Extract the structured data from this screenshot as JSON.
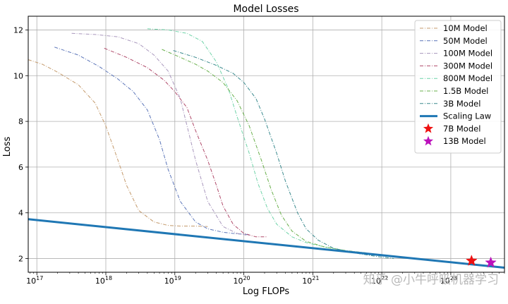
{
  "chart_data": {
    "type": "line",
    "title": "Model Losses",
    "xlabel": "Log FLOPs",
    "ylabel": "Loss",
    "xscale": "log",
    "xlim": [
      7.5e+16,
      6e+23
    ],
    "ylim": [
      1.4,
      12.6
    ],
    "grid": true,
    "legend_position": "top-right",
    "x_ticks": [
      {
        "value": 1e+17,
        "base": "10",
        "exp": "17"
      },
      {
        "value": 1e+18,
        "base": "10",
        "exp": "18"
      },
      {
        "value": 1e+19,
        "base": "10",
        "exp": "19"
      },
      {
        "value": 1e+20,
        "base": "10",
        "exp": "20"
      },
      {
        "value": 1e+21,
        "base": "10",
        "exp": "21"
      },
      {
        "value": 1e+22,
        "base": "10",
        "exp": "22"
      },
      {
        "value": 1e+23,
        "base": "10",
        "exp": "23"
      }
    ],
    "y_ticks": [
      {
        "value": 2,
        "label": "2"
      },
      {
        "value": 4,
        "label": "4"
      },
      {
        "value": 6,
        "label": "6"
      },
      {
        "value": 8,
        "label": "8"
      },
      {
        "value": 10,
        "label": "10"
      },
      {
        "value": 12,
        "label": "12"
      }
    ],
    "series": [
      {
        "name": "10M Model",
        "color": "#c49a6c",
        "style": "dashdot",
        "x": [
          7.5e+16,
          1.2e+17,
          2e+17,
          4e+17,
          7e+17,
          1e+18,
          1.5e+18,
          2e+18,
          3e+18,
          5e+18,
          8e+18,
          1.2e+19,
          2e+19,
          3e+19
        ],
        "y": [
          10.7,
          10.5,
          10.15,
          9.6,
          8.8,
          7.8,
          6.3,
          5.2,
          4.1,
          3.6,
          3.45,
          3.42,
          3.42,
          3.4
        ]
      },
      {
        "name": "50M Model",
        "color": "#5a74b8",
        "style": "dashdot",
        "x": [
          1.8e+17,
          4e+17,
          8e+17,
          1.5e+18,
          2.5e+18,
          4e+18,
          6e+18,
          8e+18,
          1.2e+19,
          2e+19,
          3e+19,
          5e+19,
          8e+19,
          1.2e+20
        ],
        "y": [
          11.25,
          10.9,
          10.4,
          9.85,
          9.3,
          8.5,
          7.2,
          5.9,
          4.5,
          3.6,
          3.3,
          3.15,
          3.08,
          3.05
        ]
      },
      {
        "name": "100M Model",
        "color": "#a896bc",
        "style": "dashdot",
        "x": [
          3.2e+17,
          7e+17,
          1.5e+18,
          3e+18,
          5e+18,
          8e+18,
          1.2e+19,
          2e+19,
          3e+19,
          5e+19,
          8e+19,
          1.2e+20
        ],
        "y": [
          11.85,
          11.8,
          11.7,
          11.4,
          10.9,
          10.2,
          9.0,
          6.3,
          4.5,
          3.4,
          3.1,
          3.0
        ]
      },
      {
        "name": "300M Model",
        "color": "#b04a6a",
        "style": "dashdot",
        "x": [
          9.5e+17,
          2e+18,
          4e+18,
          7e+18,
          1e+19,
          1.5e+19,
          2e+19,
          3e+19,
          4e+19,
          5e+19,
          7e+19,
          1e+20,
          1.5e+20,
          2.2e+20
        ],
        "y": [
          11.2,
          10.8,
          10.35,
          9.8,
          9.3,
          8.6,
          7.6,
          6.3,
          5.2,
          4.3,
          3.5,
          3.1,
          2.95,
          2.95
        ]
      },
      {
        "name": "800M Model",
        "color": "#6fd3a8",
        "style": "dashdot",
        "x": [
          4e+18,
          8e+18,
          1.5e+19,
          2.5e+19,
          4e+19,
          6e+19,
          8e+19,
          1.2e+20,
          1.6e+20,
          2.2e+20,
          3e+20,
          5e+20,
          8e+20,
          1.5e+21,
          3e+21
        ],
        "y": [
          12.05,
          12.0,
          11.85,
          11.5,
          10.6,
          9.4,
          8.2,
          6.6,
          5.3,
          4.2,
          3.5,
          2.95,
          2.7,
          2.5,
          2.35
        ]
      },
      {
        "name": "1.5B Model",
        "color": "#6ab04c",
        "style": "dashdot",
        "x": [
          6.5e+18,
          1.2e+19,
          2e+19,
          3e+19,
          5e+19,
          8e+19,
          1.2e+20,
          1.8e+20,
          2.5e+20,
          3.5e+20,
          5e+20,
          8e+20,
          1.5e+21,
          3e+21,
          6e+21
        ],
        "y": [
          11.15,
          10.8,
          10.5,
          10.2,
          9.7,
          8.9,
          7.8,
          6.3,
          5.0,
          3.9,
          3.2,
          2.75,
          2.5,
          2.35,
          2.25
        ]
      },
      {
        "name": "3B Model",
        "color": "#3a8a8e",
        "style": "dashdot",
        "x": [
          9.5e+18,
          2e+19,
          4e+19,
          7e+19,
          1e+20,
          1.5e+20,
          2e+20,
          3e+20,
          4e+20,
          6e+20,
          8e+20,
          1.2e+21,
          2e+21,
          4e+21,
          8e+21,
          1.5e+22
        ],
        "y": [
          11.1,
          10.8,
          10.45,
          10.1,
          9.7,
          9.0,
          8.1,
          6.6,
          5.4,
          4.0,
          3.3,
          2.8,
          2.45,
          2.25,
          2.1,
          2.0
        ]
      },
      {
        "name": "Scaling Law",
        "color": "#1f77b4",
        "style": "solid",
        "x": [
          7.5e+16,
          6e+23
        ],
        "y": [
          3.72,
          1.6
        ]
      }
    ],
    "points": [
      {
        "name": "7B Model",
        "color": "#ee1111",
        "x": 2e+23,
        "y": 1.9
      },
      {
        "name": "13B Model",
        "color": "#bb11bb",
        "x": 3.8e+23,
        "y": 1.82
      }
    ],
    "watermark": "知乎 @小牛呼吸机器学习"
  }
}
